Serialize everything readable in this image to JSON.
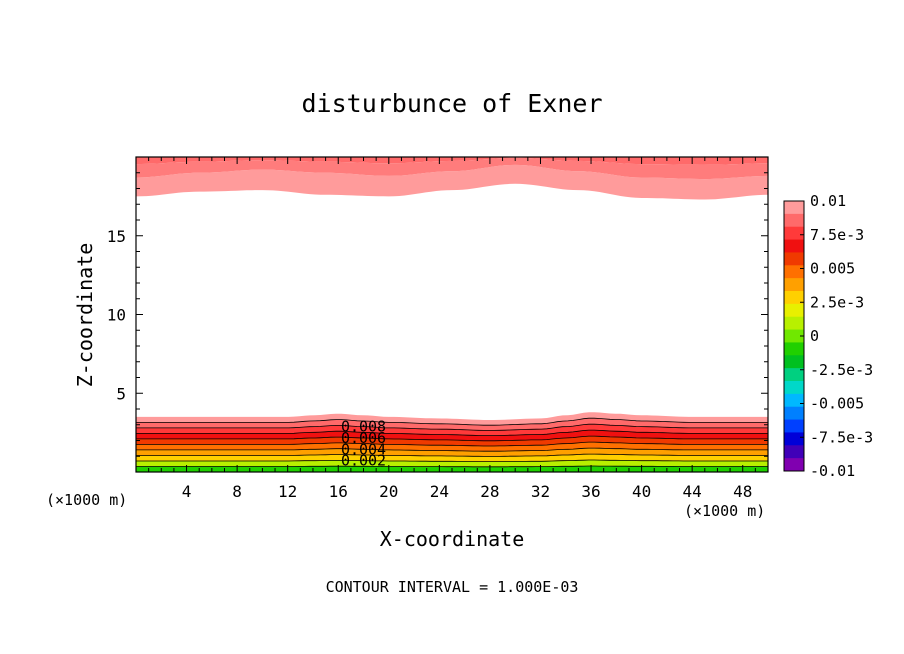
{
  "chart_data": {
    "type": "contour",
    "title": "disturbunce of Exner",
    "xlabel": "X-coordinate",
    "ylabel": "Z-coordinate",
    "x_unit_left": "(×1000 m)",
    "x_unit_right": "(×1000 m)",
    "xlim": [
      0,
      50
    ],
    "ylim": [
      0,
      20
    ],
    "xticks": [
      4,
      8,
      12,
      16,
      20,
      24,
      28,
      32,
      36,
      40,
      44,
      48
    ],
    "xtick_labels": [
      "4",
      "8",
      "12",
      "16",
      "20",
      "24",
      "28",
      "32",
      "36",
      "40",
      "44",
      "48"
    ],
    "yticks": [
      5,
      10,
      15
    ],
    "ytick_labels": [
      "5",
      "10",
      "15"
    ],
    "footer": "CONTOUR INTERVAL = 1.000E-03",
    "contour_interval": 0.001,
    "contour_labels": [
      "0.008",
      "0.006",
      "0.004",
      "0.002"
    ],
    "colorbar": {
      "range": [
        -0.01,
        0.01
      ],
      "tick_values": [
        0.01,
        0.0075,
        0.005,
        0.0025,
        0,
        -0.0025,
        -0.005,
        -0.0075,
        -0.01
      ],
      "tick_labels": [
        "0.01",
        "7.5e-3",
        "0.005",
        "2.5e-3",
        "0",
        "-2.5e-3",
        "-0.005",
        "-7.5e-3",
        "-0.01"
      ],
      "colors": [
        "#ff9b9b",
        "#ff6a6a",
        "#ff3a3a",
        "#f01010",
        "#f03a00",
        "#ff7000",
        "#ffa000",
        "#ffd000",
        "#e8f000",
        "#b8f000",
        "#70e800",
        "#20d000",
        "#00c020",
        "#00d080",
        "#00d8c8",
        "#00b8ff",
        "#0080ff",
        "#0040ff",
        "#0000d8",
        "#4000b8",
        "#8000b0"
      ]
    },
    "bottom_layer": {
      "x_nodes": [
        0,
        4,
        8,
        12,
        14,
        16,
        18,
        20,
        24,
        28,
        32,
        34,
        36,
        38,
        40,
        44,
        48,
        50
      ],
      "top_height": [
        3.5,
        3.5,
        3.5,
        3.5,
        3.6,
        3.7,
        3.6,
        3.5,
        3.4,
        3.3,
        3.4,
        3.6,
        3.8,
        3.7,
        3.6,
        3.5,
        3.5,
        3.5
      ],
      "levels": [
        0.009,
        0.008,
        0.007,
        0.006,
        0.005,
        0.004,
        0.003,
        0.002,
        0.001
      ],
      "level_colors": [
        "#ff9b9b",
        "#ff6a6a",
        "#ff3a3a",
        "#f01010",
        "#f03a00",
        "#ff7000",
        "#ffa000",
        "#ffd000",
        "#b8f000",
        "#20d000"
      ]
    },
    "top_layer": {
      "x_nodes": [
        0,
        5,
        10,
        15,
        20,
        25,
        30,
        35,
        40,
        45,
        50
      ],
      "lower_edge": [
        17.5,
        17.8,
        17.9,
        17.6,
        17.5,
        17.9,
        18.3,
        17.9,
        17.4,
        17.3,
        17.6
      ],
      "mid_edge": [
        18.7,
        19.0,
        19.2,
        19.0,
        18.8,
        19.1,
        19.5,
        19.1,
        18.7,
        18.6,
        18.8
      ],
      "colors": [
        "#ff9b9b",
        "#ff7c7c",
        "#ff6a6a"
      ]
    }
  }
}
